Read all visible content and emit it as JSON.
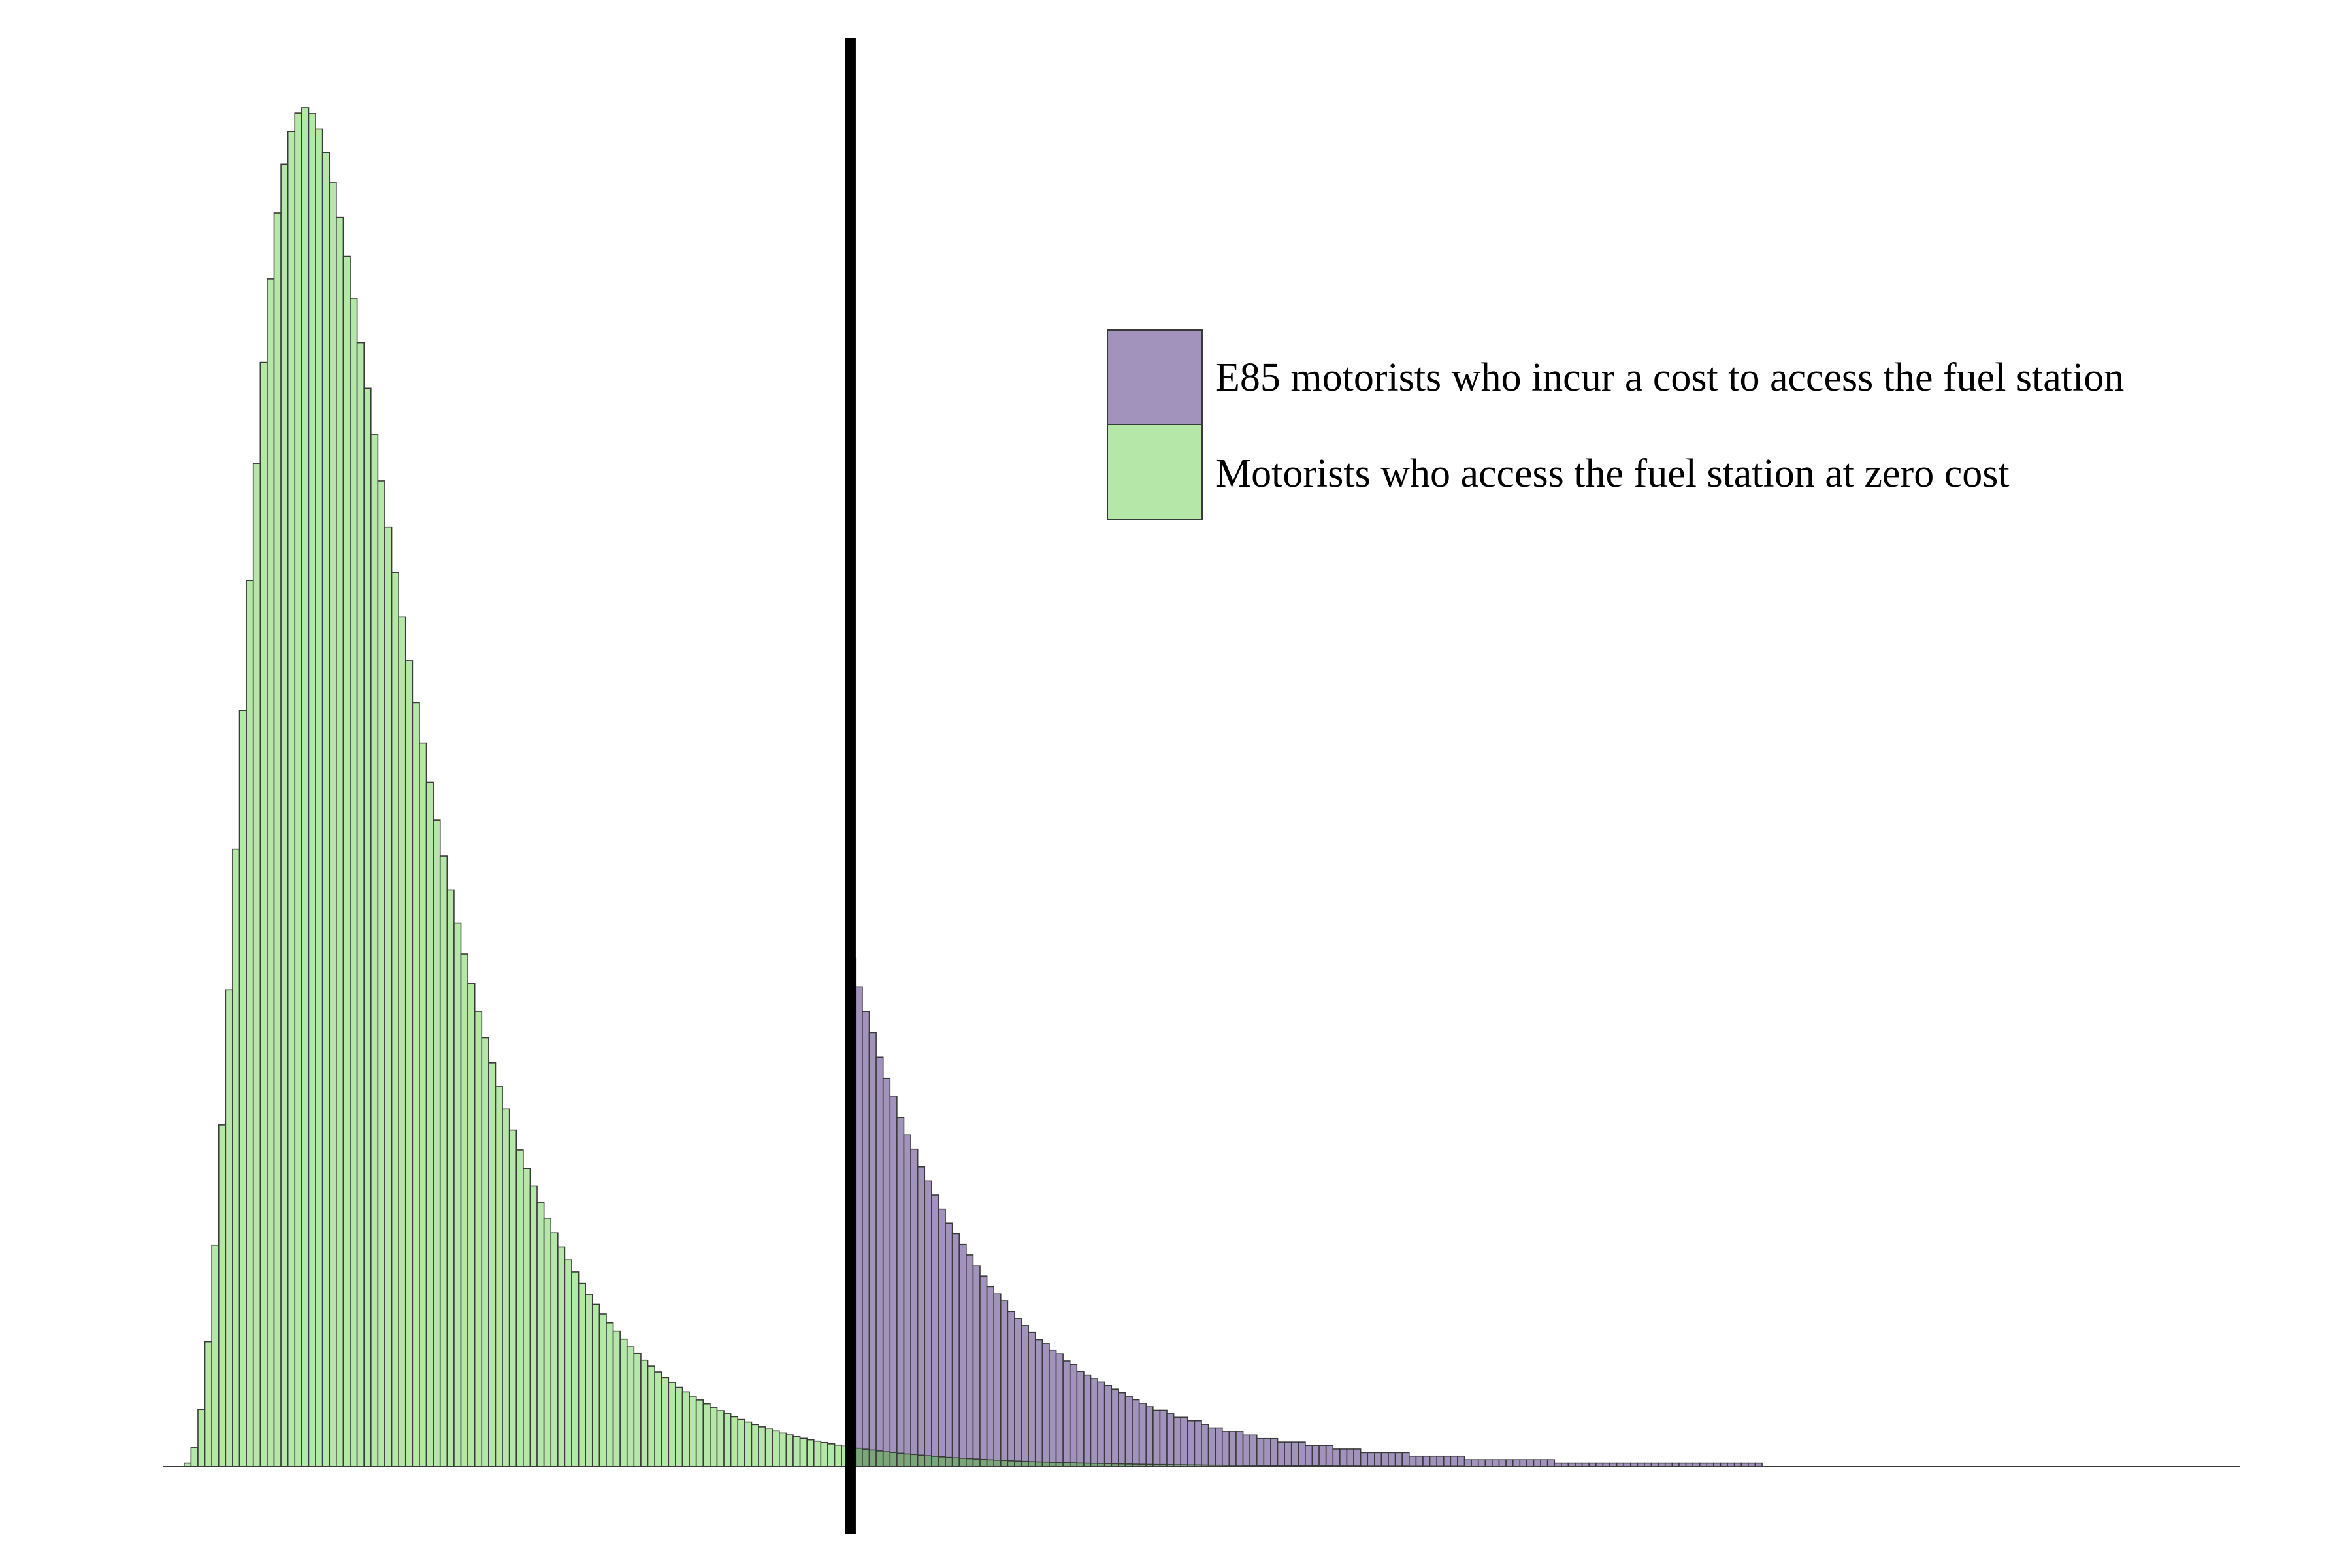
{
  "chart_data": {
    "type": "bar",
    "xlabel": "",
    "ylabel": "",
    "title": "",
    "grid": false,
    "legend_position": "top-right",
    "x_range": [
      0,
      300
    ],
    "y_range": [
      0,
      100
    ],
    "threshold_x": 99.3,
    "bin_count": 300,
    "series": [
      {
        "name": "Motorists who access the fuel station at zero cost",
        "color": "#b5e8a8",
        "distribution": {
          "kind": "lognormal",
          "median": 27.0,
          "sigma": 0.55,
          "shift": 0.5,
          "peak_height": 100
        },
        "values": []
      },
      {
        "name": "E85 motorists who incur a cost to access the fuel station",
        "color": "#a193bb",
        "distribution": {
          "kind": "lognormal",
          "median": 27.0,
          "sigma": 0.55,
          "shift": 0.5,
          "peak_height": 100,
          "rescaled_from_x": 99.3,
          "start_height": 37.4
        },
        "values": []
      }
    ],
    "overlap_color": "#7aa67a",
    "outline_color": "#3a3a3a",
    "threshold_line_color": "#000000"
  },
  "legend": {
    "items": [
      {
        "label": "E85 motorists who incur a cost to access the fuel station",
        "color": "#a193bb"
      },
      {
        "label": "Motorists who access the fuel station at zero cost",
        "color": "#b5e8a8"
      }
    ]
  }
}
